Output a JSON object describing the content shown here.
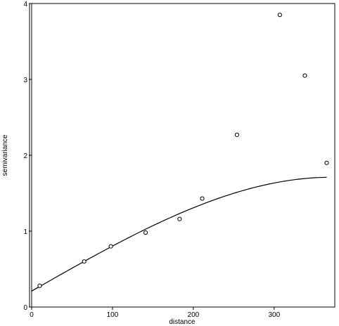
{
  "chart_data": {
    "type": "scatter",
    "title": "",
    "xlabel": "distance",
    "ylabel": "semivariance",
    "xlim": [
      0,
      375
    ],
    "ylim": [
      0,
      4
    ],
    "x_ticks": [
      0,
      100,
      200,
      300
    ],
    "y_ticks": [
      0,
      1,
      2,
      3,
      4
    ],
    "x_tick_labels": [
      "0",
      "100",
      "200",
      "300"
    ],
    "y_tick_labels": [
      "0",
      "1",
      "2",
      "3",
      "4"
    ],
    "grid": false,
    "legend": "none",
    "points": [
      {
        "x": 10,
        "y": 0.28
      },
      {
        "x": 65,
        "y": 0.6
      },
      {
        "x": 98,
        "y": 0.8
      },
      {
        "x": 141,
        "y": 0.98
      },
      {
        "x": 183,
        "y": 1.16
      },
      {
        "x": 211,
        "y": 1.43
      },
      {
        "x": 254,
        "y": 2.27
      },
      {
        "x": 307,
        "y": 3.85
      },
      {
        "x": 338,
        "y": 3.05
      },
      {
        "x": 365,
        "y": 1.9
      }
    ],
    "fitted_curve": {
      "model": "spherical",
      "nugget": 0.21,
      "partial_sill": 1.5,
      "range": 370,
      "x_min": 0,
      "x_max": 365
    }
  }
}
